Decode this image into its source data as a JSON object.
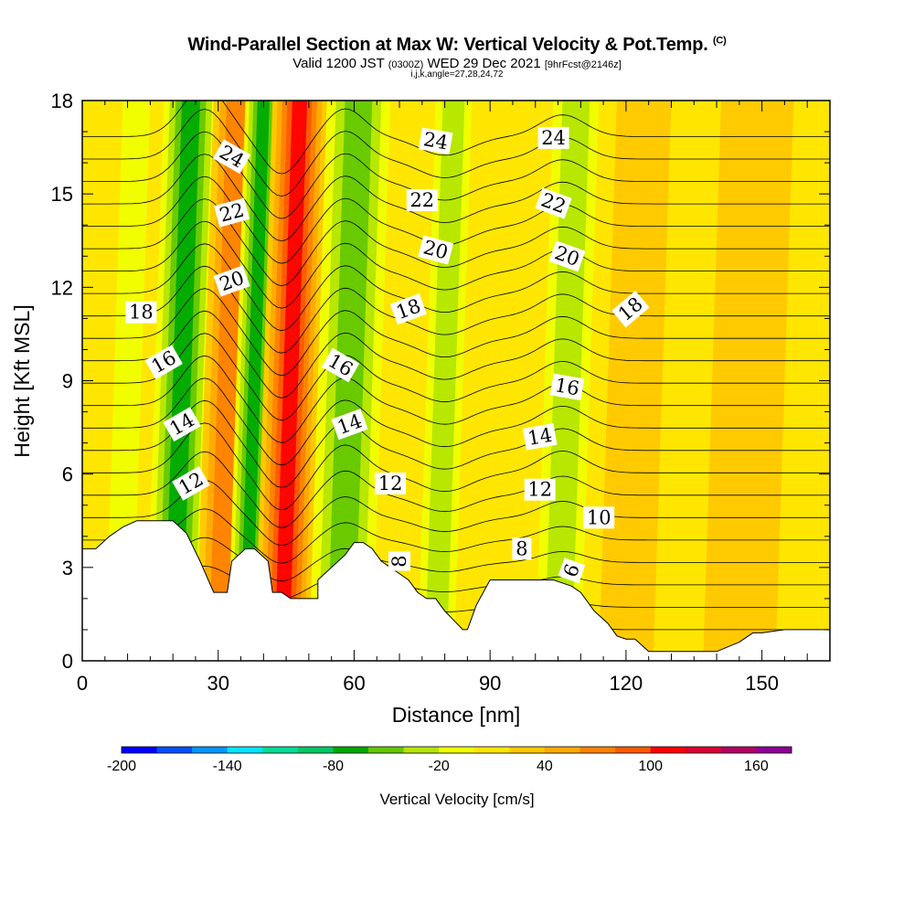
{
  "title": {
    "main": "Wind-Parallel Section at Max W: Vertical Velocity & Pot.Temp.",
    "copyright": "(C)",
    "valid_prefix": "Valid 1200 JST",
    "valid_utc": "(0300Z)",
    "valid_date": "WED 29 Dec 2021",
    "forecast": "[9hrFcst@2146z]",
    "indices": "i,j,k,angle=27,28,24,72"
  },
  "chart_data": {
    "type": "heatmap",
    "xlabel": "Distance [nm]",
    "ylabel": "Height [Kft MSL]",
    "xlim": [
      0,
      165
    ],
    "ylim": [
      0,
      18
    ],
    "xticks": [
      0,
      30,
      60,
      90,
      120,
      150
    ],
    "yticks": [
      0,
      3,
      6,
      9,
      12,
      15,
      18
    ],
    "colorbar": {
      "label": "Vertical Velocity [cm/s]",
      "min": -200,
      "max": 180,
      "step": 20,
      "tick_labels": [
        -200,
        -140,
        -80,
        -20,
        40,
        100,
        160
      ],
      "colors": [
        "#0000ff",
        "#0050ff",
        "#0096ff",
        "#00e6ff",
        "#00dc96",
        "#00c864",
        "#00aa00",
        "#64c800",
        "#b4e600",
        "#f0ff00",
        "#ffe600",
        "#ffc800",
        "#ffaa00",
        "#ff8200",
        "#ff5a00",
        "#ff0000",
        "#dc0032",
        "#b40064",
        "#8c0096"
      ]
    },
    "vertical_velocity_bands": [
      {
        "x": 8,
        "value": -20,
        "half_width": 3
      },
      {
        "x": 20,
        "value": -80,
        "half_width": 6
      },
      {
        "x": 30,
        "value": 60,
        "half_width": 5
      },
      {
        "x": 36,
        "value": -80,
        "half_width": 4
      },
      {
        "x": 44,
        "value": 100,
        "half_width": 6
      },
      {
        "x": 57,
        "value": -60,
        "half_width": 7
      },
      {
        "x": 78,
        "value": -40,
        "half_width": 4
      },
      {
        "x": 105,
        "value": -40,
        "half_width": 5
      },
      {
        "x": 120,
        "value": 30,
        "half_width": 6
      },
      {
        "x": 145,
        "value": 20,
        "half_width": 8
      }
    ],
    "terrain_kft": {
      "x": [
        0,
        3,
        6,
        9,
        12,
        15,
        18,
        20,
        23,
        26,
        29,
        30,
        32,
        33,
        36,
        38,
        41,
        42,
        44,
        46,
        49,
        52,
        52,
        55,
        58,
        60,
        62,
        64,
        66,
        68,
        70,
        72,
        74,
        76,
        78,
        80,
        82,
        84,
        85,
        87,
        90,
        96,
        100,
        104,
        108,
        110,
        113,
        116,
        118,
        120,
        122,
        125,
        130,
        135,
        140,
        145,
        148,
        150,
        155,
        160,
        165
      ],
      "height": [
        3.6,
        3.6,
        4.0,
        4.3,
        4.5,
        4.5,
        4.5,
        4.5,
        4.1,
        3.2,
        2.2,
        2.2,
        2.2,
        3.2,
        3.6,
        3.6,
        3.2,
        2.2,
        2.2,
        2.0,
        2.0,
        2.0,
        2.6,
        3.0,
        3.4,
        3.8,
        3.8,
        3.6,
        3.2,
        3.0,
        2.8,
        2.6,
        2.2,
        2.0,
        2.0,
        1.6,
        1.3,
        1.0,
        1.0,
        1.8,
        2.6,
        2.6,
        2.6,
        2.6,
        2.4,
        2.2,
        1.6,
        1.2,
        0.8,
        0.7,
        0.7,
        0.3,
        0.3,
        0.3,
        0.3,
        0.6,
        0.9,
        0.9,
        1.0,
        1.0,
        1.0
      ]
    },
    "pot_temp_contours": {
      "levels": [
        4,
        6,
        8,
        10,
        12,
        14,
        16,
        18,
        20,
        22,
        24
      ],
      "labels": [
        {
          "text": "12",
          "x": 24,
          "y": 5.7,
          "angle": -30
        },
        {
          "text": "14",
          "x": 22,
          "y": 7.6,
          "angle": -30
        },
        {
          "text": "16",
          "x": 18,
          "y": 9.6,
          "angle": -30
        },
        {
          "text": "18",
          "x": 13,
          "y": 11.2,
          "angle": 0
        },
        {
          "text": "20",
          "x": 33,
          "y": 12.2,
          "angle": -20
        },
        {
          "text": "22",
          "x": 33,
          "y": 14.4,
          "angle": -15
        },
        {
          "text": "24",
          "x": 33,
          "y": 16.2,
          "angle": 30
        },
        {
          "text": "16",
          "x": 57,
          "y": 9.5,
          "angle": 30
        },
        {
          "text": "14",
          "x": 59,
          "y": 7.6,
          "angle": -20
        },
        {
          "text": "12",
          "x": 68,
          "y": 5.7,
          "angle": 0
        },
        {
          "text": "8",
          "x": 70,
          "y": 3.2,
          "angle": -90
        },
        {
          "text": "18",
          "x": 72,
          "y": 11.3,
          "angle": -20
        },
        {
          "text": "20",
          "x": 78,
          "y": 13.2,
          "angle": 15
        },
        {
          "text": "22",
          "x": 75,
          "y": 14.8,
          "angle": 0
        },
        {
          "text": "24",
          "x": 78,
          "y": 16.7,
          "angle": 10
        },
        {
          "text": "24",
          "x": 104,
          "y": 16.8,
          "angle": 0
        },
        {
          "text": "22",
          "x": 104,
          "y": 14.7,
          "angle": 20
        },
        {
          "text": "20",
          "x": 107,
          "y": 13.0,
          "angle": 20
        },
        {
          "text": "18",
          "x": 121,
          "y": 11.3,
          "angle": -40
        },
        {
          "text": "16",
          "x": 107,
          "y": 8.8,
          "angle": 10
        },
        {
          "text": "14",
          "x": 101,
          "y": 7.2,
          "angle": -10
        },
        {
          "text": "12",
          "x": 101,
          "y": 5.5,
          "angle": 0
        },
        {
          "text": "10",
          "x": 114,
          "y": 4.6,
          "angle": 0
        },
        {
          "text": "8",
          "x": 97,
          "y": 3.6,
          "angle": 0
        },
        {
          "text": "6",
          "x": 108,
          "y": 2.9,
          "angle": -70
        }
      ]
    }
  }
}
